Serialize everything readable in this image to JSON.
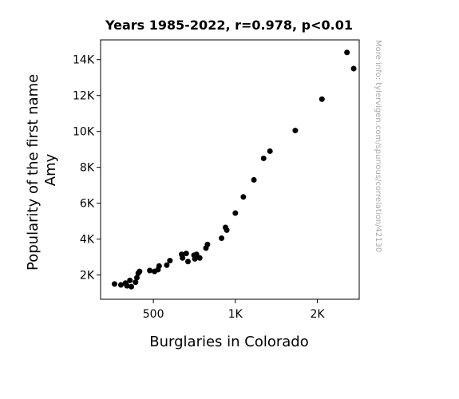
{
  "chart_data": {
    "type": "scatter",
    "title": "Years 1985-2022, r=0.978, p<0.01",
    "xlabel": "Burglaries in Colorado",
    "ylabel": [
      "Popularity of the first name",
      "Amy"
    ],
    "x_scale": "log",
    "xlim": [
      320,
      2850
    ],
    "ylim": [
      650,
      15100
    ],
    "x_ticks": [
      {
        "value": 500,
        "label": "500"
      },
      {
        "value": 1000,
        "label": "1K"
      },
      {
        "value": 2000,
        "label": "2K"
      }
    ],
    "y_ticks": [
      {
        "value": 2000,
        "label": "2K"
      },
      {
        "value": 4000,
        "label": "4K"
      },
      {
        "value": 6000,
        "label": "6K"
      },
      {
        "value": 8000,
        "label": "8K"
      },
      {
        "value": 10000,
        "label": "10K"
      },
      {
        "value": 12000,
        "label": "12K"
      },
      {
        "value": 14000,
        "label": "14K"
      }
    ],
    "grid": false,
    "marker_color": "#000000",
    "watermark": "More info: tylervigen.com/spurious/correlation/42130",
    "points": [
      {
        "x": 2570,
        "y": 14400
      },
      {
        "x": 2720,
        "y": 13500
      },
      {
        "x": 2080,
        "y": 11800
      },
      {
        "x": 1660,
        "y": 10050
      },
      {
        "x": 1340,
        "y": 8900
      },
      {
        "x": 1270,
        "y": 8500
      },
      {
        "x": 1170,
        "y": 7300
      },
      {
        "x": 1070,
        "y": 6350
      },
      {
        "x": 1000,
        "y": 5450
      },
      {
        "x": 920,
        "y": 4650
      },
      {
        "x": 930,
        "y": 4500
      },
      {
        "x": 890,
        "y": 4050
      },
      {
        "x": 790,
        "y": 3700
      },
      {
        "x": 780,
        "y": 3500
      },
      {
        "x": 720,
        "y": 3150
      },
      {
        "x": 705,
        "y": 3100
      },
      {
        "x": 660,
        "y": 3200
      },
      {
        "x": 635,
        "y": 3150
      },
      {
        "x": 640,
        "y": 2950
      },
      {
        "x": 710,
        "y": 2900
      },
      {
        "x": 740,
        "y": 2950
      },
      {
        "x": 670,
        "y": 2750
      },
      {
        "x": 575,
        "y": 2800
      },
      {
        "x": 560,
        "y": 2550
      },
      {
        "x": 525,
        "y": 2500
      },
      {
        "x": 520,
        "y": 2300
      },
      {
        "x": 505,
        "y": 2200
      },
      {
        "x": 485,
        "y": 2250
      },
      {
        "x": 445,
        "y": 2200
      },
      {
        "x": 440,
        "y": 2100
      },
      {
        "x": 435,
        "y": 1850
      },
      {
        "x": 430,
        "y": 1600
      },
      {
        "x": 410,
        "y": 1700
      },
      {
        "x": 395,
        "y": 1550
      },
      {
        "x": 380,
        "y": 1450
      },
      {
        "x": 360,
        "y": 1500
      },
      {
        "x": 400,
        "y": 1400
      },
      {
        "x": 415,
        "y": 1350
      }
    ]
  }
}
